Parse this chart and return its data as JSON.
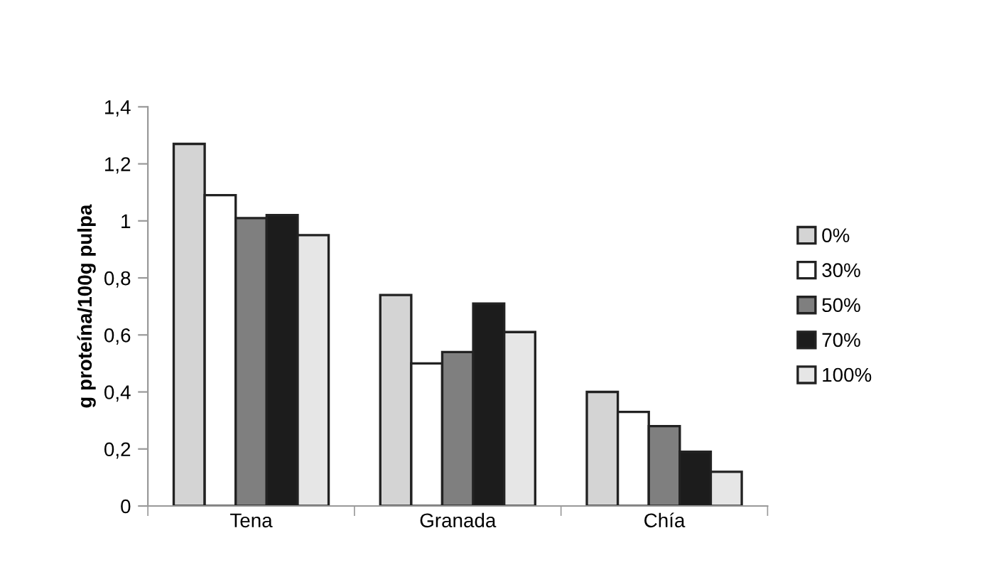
{
  "chart_data": {
    "type": "bar",
    "ylabel": "g proteína/100g pulpa",
    "categories": [
      "Tena",
      "Granada",
      "Chía"
    ],
    "series": [
      {
        "name": "0%",
        "color": "#d4d4d4",
        "values": [
          1.27,
          0.74,
          0.4
        ]
      },
      {
        "name": "30%",
        "color": "#ffffff",
        "values": [
          1.09,
          0.5,
          0.33
        ]
      },
      {
        "name": "50%",
        "color": "#7f7f7f",
        "values": [
          1.01,
          0.54,
          0.28
        ]
      },
      {
        "name": "70%",
        "color": "#1c1c1c",
        "values": [
          1.02,
          0.71,
          0.19
        ]
      },
      {
        "name": "100%",
        "color": "#e6e6e6",
        "values": [
          0.95,
          0.61,
          0.12
        ]
      }
    ],
    "ylim": [
      0,
      1.4
    ],
    "yticks": [
      0,
      {
        "value": 0.2,
        "label": "0,2"
      },
      {
        "value": 0.4,
        "label": "0,4"
      },
      {
        "value": 0.6,
        "label": "0,6"
      },
      {
        "value": 0.8,
        "label": "0,8"
      },
      1,
      {
        "value": 1.2,
        "label": "1,2"
      },
      {
        "value": 1.4,
        "label": "1,4"
      }
    ],
    "grid": false,
    "legend": "right"
  }
}
